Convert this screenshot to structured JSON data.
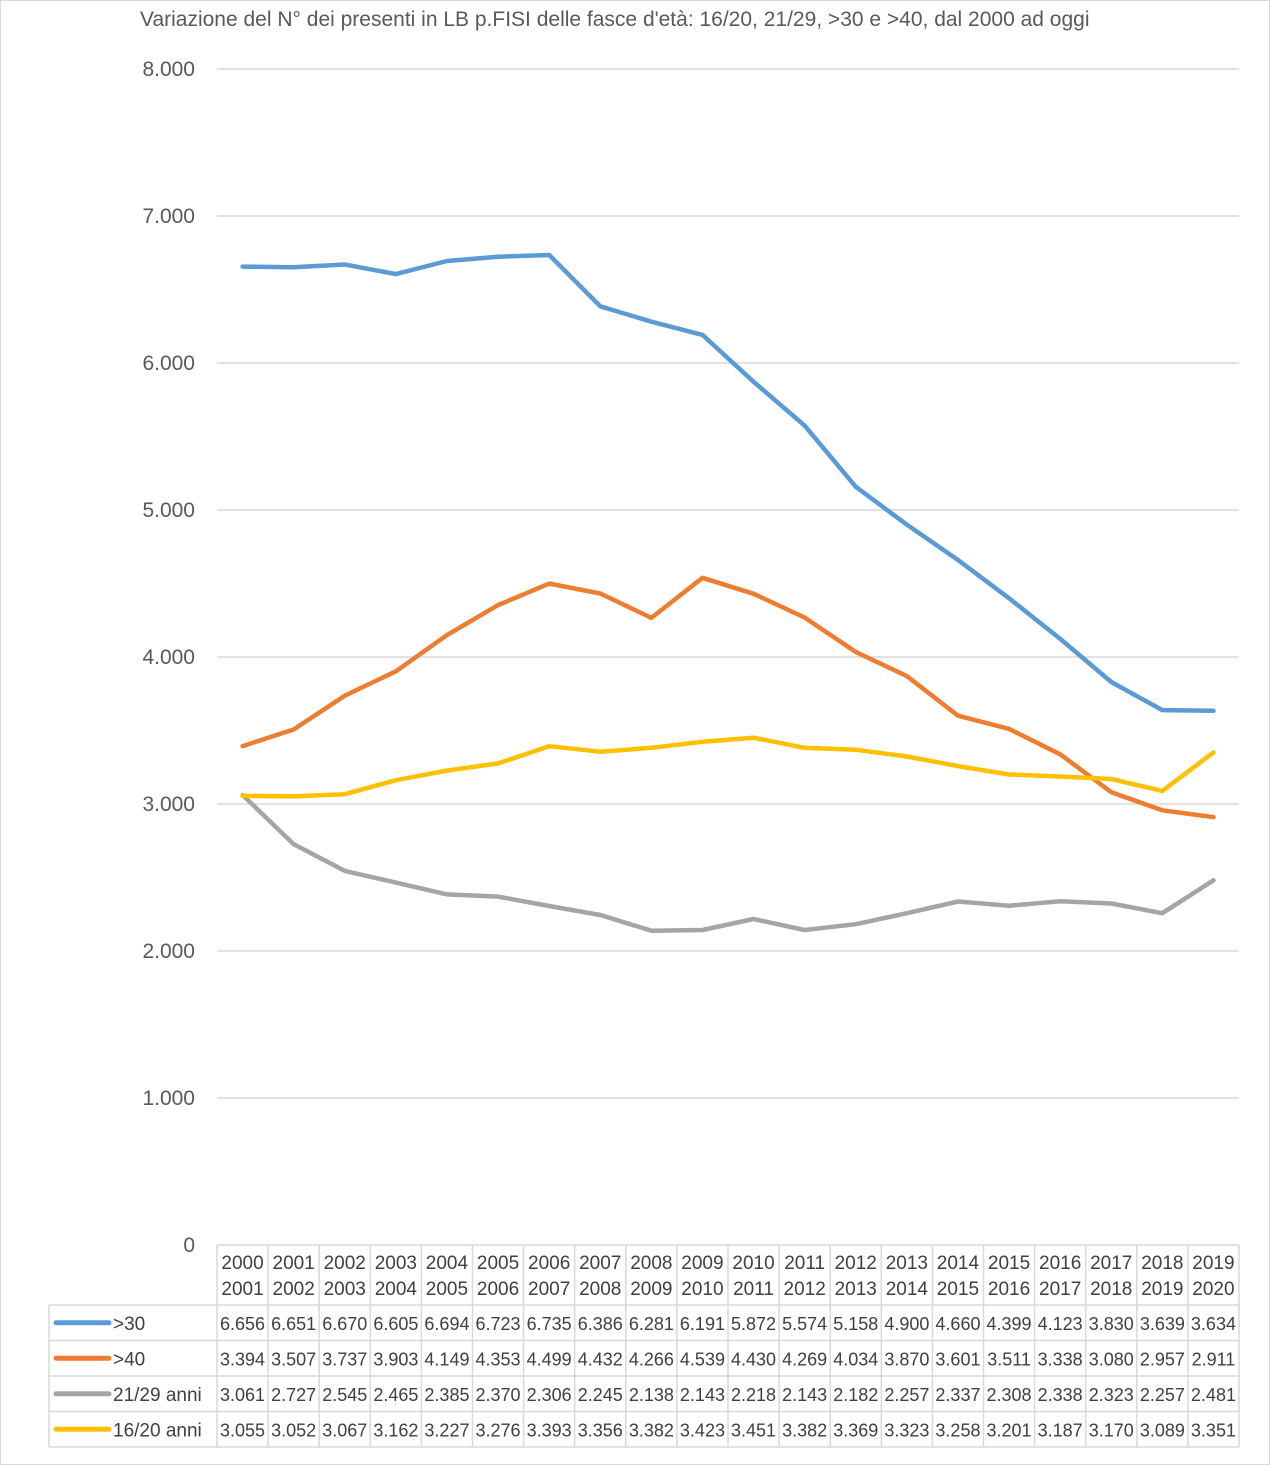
{
  "chart_data": {
    "type": "line",
    "title": "Variazione del N° dei presenti in LB p.FISI delle fasce d'età: 16/20, 21/29, >30 e >40, dal 2000 ad oggi",
    "ylim": [
      0,
      8000
    ],
    "y_tick_labels": [
      "0",
      "1.000",
      "2.000",
      "3.000",
      "4.000",
      "5.000",
      "6.000",
      "7.000",
      "8.000"
    ],
    "grid": true,
    "legend_placement": "data-table-left",
    "categories": [
      [
        "2000",
        "2001"
      ],
      [
        "2001",
        "2002"
      ],
      [
        "2002",
        "2003"
      ],
      [
        "2003",
        "2004"
      ],
      [
        "2004",
        "2005"
      ],
      [
        "2005",
        "2006"
      ],
      [
        "2006",
        "2007"
      ],
      [
        "2007",
        "2008"
      ],
      [
        "2008",
        "2009"
      ],
      [
        "2009",
        "2010"
      ],
      [
        "2010",
        "2011"
      ],
      [
        "2011",
        "2012"
      ],
      [
        "2012",
        "2013"
      ],
      [
        "2013",
        "2014"
      ],
      [
        "2014",
        "2015"
      ],
      [
        "2015",
        "2016"
      ],
      [
        "2016",
        "2017"
      ],
      [
        "2017",
        "2018"
      ],
      [
        "2018",
        "2019"
      ],
      [
        "2019",
        "2020"
      ]
    ],
    "series": [
      {
        "name": ">30",
        "color": "#5B9BD5",
        "values": [
          6656,
          6651,
          6670,
          6605,
          6694,
          6723,
          6735,
          6386,
          6281,
          6191,
          5872,
          5574,
          5158,
          4900,
          4660,
          4399,
          4123,
          3830,
          3639,
          3634
        ],
        "labels": [
          "6.656",
          "6.651",
          "6.670",
          "6.605",
          "6.694",
          "6.723",
          "6.735",
          "6.386",
          "6.281",
          "6.191",
          "5.872",
          "5.574",
          "5.158",
          "4.900",
          "4.660",
          "4.399",
          "4.123",
          "3.830",
          "3.639",
          "3.634"
        ]
      },
      {
        "name": ">40",
        "color": "#ED7D31",
        "values": [
          3394,
          3507,
          3737,
          3903,
          4149,
          4353,
          4499,
          4432,
          4266,
          4539,
          4430,
          4269,
          4034,
          3870,
          3601,
          3511,
          3338,
          3080,
          2957,
          2911
        ],
        "labels": [
          "3.394",
          "3.507",
          "3.737",
          "3.903",
          "4.149",
          "4.353",
          "4.499",
          "4.432",
          "4.266",
          "4.539",
          "4.430",
          "4.269",
          "4.034",
          "3.870",
          "3.601",
          "3.511",
          "3.338",
          "3.080",
          "2.957",
          "2.911"
        ]
      },
      {
        "name": "21/29 anni",
        "color": "#A5A5A5",
        "values": [
          3061,
          2727,
          2545,
          2465,
          2385,
          2370,
          2306,
          2245,
          2138,
          2143,
          2218,
          2143,
          2182,
          2257,
          2337,
          2308,
          2338,
          2323,
          2257,
          2481
        ],
        "labels": [
          "3.061",
          "2.727",
          "2.545",
          "2.465",
          "2.385",
          "2.370",
          "2.306",
          "2.245",
          "2.138",
          "2.143",
          "2.218",
          "2.143",
          "2.182",
          "2.257",
          "2.337",
          "2.308",
          "2.338",
          "2.323",
          "2.257",
          "2.481"
        ]
      },
      {
        "name": "16/20 anni",
        "color": "#FFC000",
        "values": [
          3055,
          3052,
          3067,
          3162,
          3227,
          3276,
          3393,
          3356,
          3382,
          3423,
          3451,
          3382,
          3369,
          3323,
          3258,
          3201,
          3187,
          3170,
          3089,
          3351
        ],
        "labels": [
          "3.055",
          "3.052",
          "3.067",
          "3.162",
          "3.227",
          "3.276",
          "3.393",
          "3.356",
          "3.382",
          "3.423",
          "3.451",
          "3.382",
          "3.369",
          "3.323",
          "3.258",
          "3.201",
          "3.187",
          "3.170",
          "3.089",
          "3.351"
        ]
      }
    ]
  }
}
